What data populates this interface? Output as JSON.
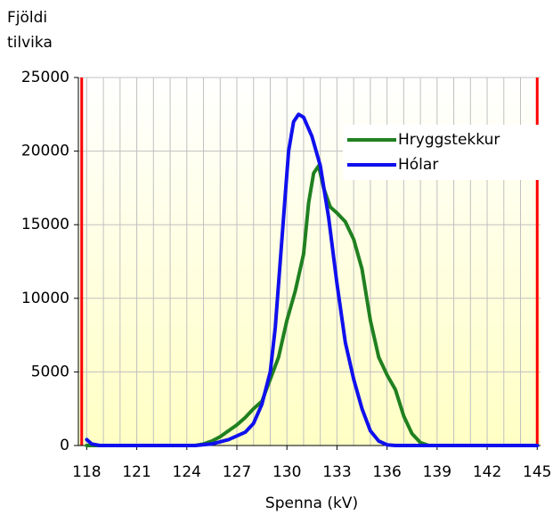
{
  "chart_data": {
    "type": "line",
    "ylabel": [
      "Fjöldi",
      "tilvika"
    ],
    "xlabel": "Spenna (kV)",
    "xlim": [
      117.5,
      145.2
    ],
    "ylim": [
      0,
      25000
    ],
    "xticks": [
      118,
      121,
      124,
      127,
      130,
      133,
      136,
      139,
      142,
      145
    ],
    "xgrid": [
      118,
      119,
      120,
      121,
      122,
      123,
      124,
      125,
      126,
      127,
      128,
      129,
      130,
      131,
      132,
      133,
      134,
      135,
      136,
      137,
      138,
      139,
      140,
      141,
      142,
      143,
      144,
      145
    ],
    "yticks": [
      0,
      5000,
      10000,
      15000,
      20000,
      25000
    ],
    "grid": true,
    "legend": "upper right",
    "limits": {
      "color": "#ff0000",
      "values": [
        117.7,
        145
      ]
    },
    "series": [
      {
        "name": "Hryggstekkur",
        "color": "#208020",
        "x": [
          118,
          124.5,
          125,
          125.5,
          126,
          126.5,
          127,
          127.5,
          128,
          128.5,
          129,
          129.5,
          130,
          130.5,
          131,
          131.3,
          131.6,
          131.9,
          132.2,
          132.6,
          133,
          133.5,
          134,
          134.5,
          135,
          135.5,
          136,
          136.5,
          137,
          137.5,
          138,
          138.5,
          145
        ],
        "values": [
          0,
          0,
          100,
          300,
          600,
          1000,
          1400,
          1900,
          2500,
          3000,
          4500,
          6000,
          8500,
          10500,
          13000,
          16500,
          18500,
          19000,
          17500,
          16200,
          15800,
          15200,
          14000,
          12000,
          8500,
          6000,
          4800,
          3800,
          2000,
          800,
          200,
          0,
          0
        ]
      },
      {
        "name": "Hólar",
        "color": "#1010ee",
        "x": [
          118,
          118.3,
          118.8,
          124.5,
          125.5,
          126.5,
          127.5,
          128,
          128.5,
          129,
          129.3,
          129.6,
          129.9,
          130.1,
          130.4,
          130.7,
          131,
          131.5,
          132,
          132.5,
          133,
          133.5,
          134,
          134.5,
          135,
          135.5,
          136,
          136.5,
          145
        ],
        "values": [
          400,
          100,
          0,
          0,
          100,
          400,
          900,
          1500,
          2800,
          5000,
          8000,
          12500,
          17000,
          20000,
          22000,
          22500,
          22300,
          21000,
          19000,
          15500,
          11000,
          7000,
          4500,
          2500,
          1000,
          300,
          50,
          0,
          0
        ]
      }
    ]
  }
}
